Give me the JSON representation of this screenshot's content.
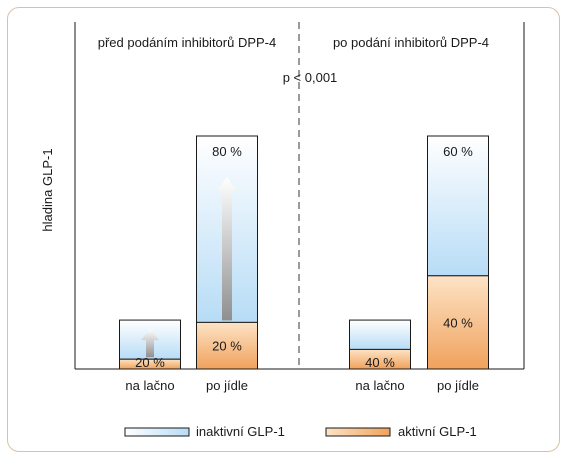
{
  "chart_data": {
    "type": "bar",
    "stacked": true,
    "ylabel": "hladina GLP-1",
    "panels": [
      {
        "title": "před podáním inhibitorů DPP-4",
        "categories": [
          "na lačno",
          "po jídle"
        ],
        "totals": [
          0.21,
          1.0
        ],
        "active_share": [
          0.2,
          0.2
        ],
        "labels": [
          {
            "active": "20 %",
            "inactive": ""
          },
          {
            "active": "20 %",
            "inactive": "80 %"
          }
        ],
        "arrows": [
          true,
          true
        ]
      },
      {
        "title": "po podání inhibitorů DPP-4",
        "categories": [
          "na lačno",
          "po jídle"
        ],
        "totals": [
          0.21,
          1.0
        ],
        "active_share": [
          0.4,
          0.4
        ],
        "labels": [
          {
            "active": "40 %",
            "inactive": ""
          },
          {
            "active": "40 %",
            "inactive": "60 %"
          }
        ],
        "arrows": [
          false,
          false
        ]
      }
    ],
    "annotation": "p < 0,001",
    "legend": {
      "position": "bottom",
      "items": [
        {
          "name": "inaktivní GLP-1",
          "key": "inactive"
        },
        {
          "name": "aktivní GLP-1",
          "key": "active"
        }
      ]
    },
    "colors": {
      "frame": "#d7c3a4",
      "inactive_top": "#ffffff",
      "inactive_bottom": "#b7dcf6",
      "active_light": "#fde3c6",
      "active_dark": "#f0a25c",
      "bar_border": "#1a1a1a",
      "divider": "#9a9a9a",
      "arrow_light": "#ffffff",
      "arrow_dark": "#8f8f8f"
    }
  }
}
